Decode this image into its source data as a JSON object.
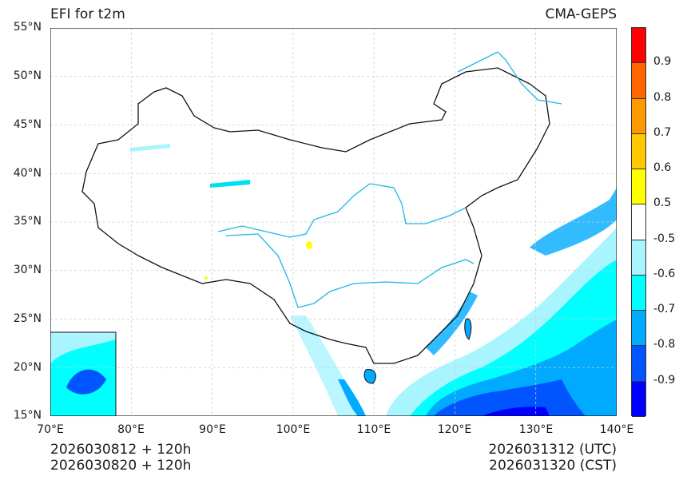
{
  "header": {
    "title_left": "EFI for t2m",
    "title_right": "CMA-GEPS"
  },
  "axes": {
    "y_ticks": [
      "55°N",
      "50°N",
      "45°N",
      "40°N",
      "35°N",
      "30°N",
      "25°N",
      "20°N",
      "15°N"
    ],
    "x_ticks": [
      "70°E",
      "80°E",
      "90°E",
      "100°E",
      "110°E",
      "120°E",
      "130°E",
      "140°E"
    ],
    "lon_range": [
      70,
      140
    ],
    "lat_range": [
      15,
      55
    ]
  },
  "footer": {
    "init_utc": "2026030812 + 120h",
    "init_cst": "2026030820 + 120h",
    "valid_utc": "2026031312 (UTC)",
    "valid_cst": "2026031320 (CST)"
  },
  "colorbar": {
    "labels": [
      "0.9",
      "0.8",
      "0.7",
      "0.6",
      "0.5",
      "-0.5",
      "-0.6",
      "-0.7",
      "-0.8",
      "-0.9"
    ],
    "colors": [
      "#ff0000",
      "#ff6600",
      "#ff9900",
      "#ffc800",
      "#ffff00",
      "#ffffff",
      "#a8f4ff",
      "#00ffff",
      "#00aaff",
      "#0055ff",
      "#0000ff"
    ]
  },
  "legend_colors": {
    "river": "#1ab8e6",
    "border": "#111111",
    "grid": "#cccccc"
  }
}
